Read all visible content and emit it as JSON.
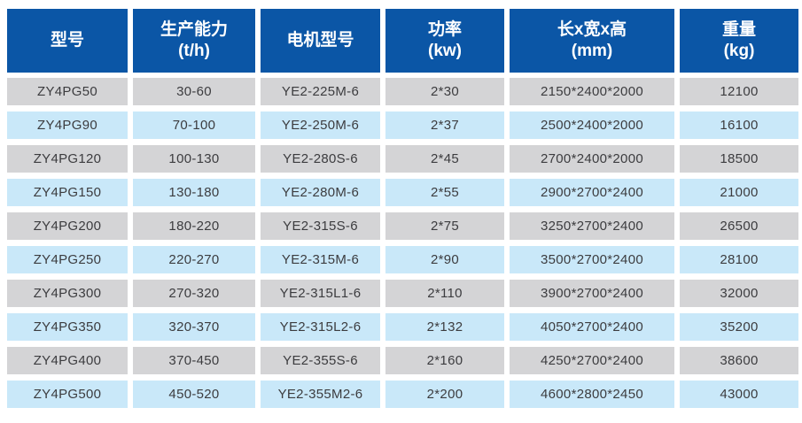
{
  "table": {
    "headers": [
      {
        "title": "型号",
        "unit": ""
      },
      {
        "title": "生产能力",
        "unit": "(t/h)"
      },
      {
        "title": "电机型号",
        "unit": ""
      },
      {
        "title": "功率",
        "unit": "(kw)"
      },
      {
        "title": "长x宽x高",
        "unit": "(mm)"
      },
      {
        "title": "重量",
        "unit": "(kg)"
      }
    ],
    "rows": [
      [
        "ZY4PG50",
        "30-60",
        "YE2-225M-6",
        "2*30",
        "2150*2400*2000",
        "12100"
      ],
      [
        "ZY4PG90",
        "70-100",
        "YE2-250M-6",
        "2*37",
        "2500*2400*2000",
        "16100"
      ],
      [
        "ZY4PG120",
        "100-130",
        "YE2-280S-6",
        "2*45",
        "2700*2400*2000",
        "18500"
      ],
      [
        "ZY4PG150",
        "130-180",
        "YE2-280M-6",
        "2*55",
        "2900*2700*2400",
        "21000"
      ],
      [
        "ZY4PG200",
        "180-220",
        "YE2-315S-6",
        "2*75",
        "3250*2700*2400",
        "26500"
      ],
      [
        "ZY4PG250",
        "220-270",
        "YE2-315M-6",
        "2*90",
        "3500*2700*2400",
        "28100"
      ],
      [
        "ZY4PG300",
        "270-320",
        "YE2-315L1-6",
        "2*110",
        "3900*2700*2400",
        "32000"
      ],
      [
        "ZY4PG350",
        "320-370",
        "YE2-315L2-6",
        "2*132",
        "4050*2700*2400",
        "35200"
      ],
      [
        "ZY4PG400",
        "370-450",
        "YE2-355S-6",
        "2*160",
        "4250*2700*2400",
        "38600"
      ],
      [
        "ZY4PG500",
        "450-520",
        "YE2-355M2-6",
        "2*200",
        "4600*2800*2450",
        "43000"
      ]
    ],
    "colors": {
      "header_bg": "#0b56a6",
      "header_text": "#ffffff",
      "row_gray": "#d4d4d6",
      "row_blue": "#c9e8f9",
      "cell_text": "#3c3c3f"
    }
  }
}
